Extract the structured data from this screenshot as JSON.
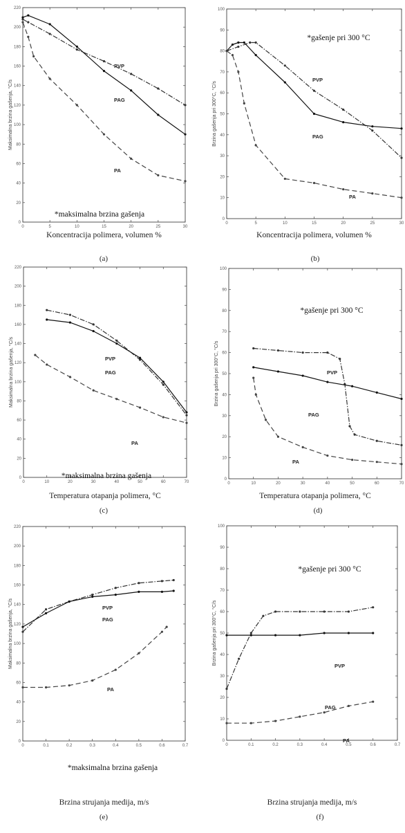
{
  "chart_data": [
    {
      "type": "line",
      "caption": "(a)",
      "xlabel": "Koncentracija polimera, volumen %",
      "ylabel": "Maksimalna brzina gašenja, °C/s",
      "annotation": "*maksimalna brzina gašenja",
      "xlim": [
        0,
        30
      ],
      "ylim": [
        0,
        220
      ],
      "xticks": [
        "0",
        "5",
        "10",
        "15",
        "20",
        "25",
        "30"
      ],
      "yticks": [
        "0",
        "20",
        "40",
        "60",
        "80",
        "100",
        "120",
        "140",
        "160",
        "180",
        "200",
        "220"
      ],
      "series": [
        {
          "name": "PVP",
          "x": [
            0,
            1,
            5,
            10,
            15,
            20,
            25,
            30
          ],
          "y": [
            208,
            205,
            193,
            177,
            165,
            152,
            137,
            120
          ]
        },
        {
          "name": "PAG",
          "x": [
            0,
            1,
            5,
            10,
            15,
            20,
            25,
            30
          ],
          "y": [
            210,
            212,
            203,
            180,
            155,
            135,
            110,
            90
          ]
        },
        {
          "name": "PA",
          "x": [
            0,
            1,
            2,
            5,
            10,
            15,
            20,
            25,
            30
          ],
          "y": [
            205,
            190,
            170,
            147,
            120,
            90,
            65,
            48,
            42
          ]
        }
      ]
    },
    {
      "type": "line",
      "caption": "(b)",
      "xlabel": "Koncentracija polimera, volumen %",
      "ylabel": "Brzina gašenja pri 300°C, °C/s",
      "annotation": "*gašenje pri 300 °C",
      "xlim": [
        0,
        30
      ],
      "ylim": [
        0,
        100
      ],
      "xticks": [
        "0",
        "5",
        "10",
        "15",
        "20",
        "25",
        "30"
      ],
      "yticks": [
        "0",
        "10",
        "20",
        "30",
        "40",
        "50",
        "60",
        "70",
        "80",
        "90",
        "100"
      ],
      "series": [
        {
          "name": "PVP",
          "x": [
            0,
            2,
            4,
            5,
            10,
            15,
            20,
            25,
            30
          ],
          "y": [
            80,
            82,
            84,
            84,
            73,
            61,
            52,
            42,
            29
          ]
        },
        {
          "name": "PAG",
          "x": [
            0,
            1,
            2,
            3,
            5,
            10,
            15,
            20,
            25,
            30
          ],
          "y": [
            80,
            83,
            84,
            84,
            78,
            65,
            50,
            46,
            44,
            43
          ]
        },
        {
          "name": "PA",
          "x": [
            0,
            1,
            2,
            3,
            5,
            10,
            15,
            20,
            25,
            30
          ],
          "y": [
            80,
            78,
            70,
            55,
            35,
            19,
            17,
            14,
            12,
            10
          ]
        }
      ]
    },
    {
      "type": "line",
      "caption": "(c)",
      "xlabel": "Temperatura otapanja polimera, °C",
      "ylabel": "Maksimalna brzina gašenja, °C/s",
      "annotation": "*maksimalna brzina gašenja",
      "xlim": [
        0,
        70
      ],
      "ylim": [
        0,
        220
      ],
      "xticks": [
        "0",
        "10",
        "20",
        "30",
        "40",
        "50",
        "60",
        "70"
      ],
      "yticks": [
        "0",
        "20",
        "40",
        "60",
        "80",
        "100",
        "120",
        "140",
        "160",
        "180",
        "200",
        "220"
      ],
      "series": [
        {
          "name": "PVP",
          "x": [
            10,
            20,
            30,
            40,
            50,
            60,
            70
          ],
          "y": [
            175,
            170,
            160,
            143,
            123,
            97,
            65
          ]
        },
        {
          "name": "PAG",
          "x": [
            10,
            20,
            30,
            40,
            50,
            60,
            70
          ],
          "y": [
            165,
            162,
            153,
            140,
            125,
            100,
            68
          ]
        },
        {
          "name": "PA",
          "x": [
            5,
            10,
            20,
            30,
            40,
            50,
            60,
            70
          ],
          "y": [
            128,
            118,
            105,
            91,
            82,
            73,
            63,
            57
          ]
        }
      ]
    },
    {
      "type": "line",
      "caption": "(d)",
      "xlabel": "Temperatura otapanja polimera, °C",
      "ylabel": "Brzina gašenja pri 300°C, °C/s",
      "annotation": "*gašenje pri 300 °C",
      "xlim": [
        0,
        70
      ],
      "ylim": [
        0,
        100
      ],
      "xticks": [
        "0",
        "10",
        "20",
        "30",
        "40",
        "50",
        "60",
        "70"
      ],
      "yticks": [
        "0",
        "10",
        "20",
        "30",
        "40",
        "50",
        "60",
        "70",
        "80",
        "90",
        "100"
      ],
      "series": [
        {
          "name": "PVP",
          "x": [
            10,
            20,
            30,
            40,
            45,
            47,
            49,
            51,
            60,
            70
          ],
          "y": [
            62,
            61,
            60,
            60,
            57,
            45,
            25,
            21,
            18,
            16
          ]
        },
        {
          "name": "PAG",
          "x": [
            10,
            20,
            30,
            40,
            50,
            60,
            70
          ],
          "y": [
            53,
            51,
            49,
            46,
            44,
            41,
            38
          ]
        },
        {
          "name": "PA",
          "x": [
            10,
            11,
            15,
            20,
            30,
            40,
            50,
            60,
            70
          ],
          "y": [
            48,
            40,
            28,
            20,
            15,
            11,
            9,
            8,
            7
          ]
        }
      ]
    },
    {
      "type": "line",
      "caption": "(e)",
      "xlabel": "Brzina strujanja medija, m/s",
      "ylabel": "Maksimalna brzina gašenja, °C/s",
      "annotation": "*maksimalna brzina gašenja",
      "xlim": [
        0,
        0.7
      ],
      "ylim": [
        0,
        220
      ],
      "xticks": [
        "0",
        "0.1",
        "0.2",
        "0.3",
        "0.4",
        "0.5",
        "0.6",
        "0.7"
      ],
      "yticks": [
        "0",
        "20",
        "40",
        "60",
        "80",
        "100",
        "120",
        "140",
        "160",
        "180",
        "200",
        "220"
      ],
      "series": [
        {
          "name": "PVP",
          "x": [
            0,
            0.1,
            0.2,
            0.3,
            0.4,
            0.5,
            0.6,
            0.65
          ],
          "y": [
            112,
            135,
            143,
            150,
            157,
            162,
            164,
            165
          ]
        },
        {
          "name": "PAG",
          "x": [
            0,
            0.1,
            0.2,
            0.3,
            0.4,
            0.5,
            0.6,
            0.65
          ],
          "y": [
            117,
            131,
            143,
            148,
            150,
            153,
            153,
            154
          ]
        },
        {
          "name": "PA",
          "x": [
            0,
            0.1,
            0.2,
            0.3,
            0.4,
            0.5,
            0.6,
            0.62
          ],
          "y": [
            55,
            55,
            57,
            62,
            73,
            90,
            112,
            117
          ]
        }
      ]
    },
    {
      "type": "line",
      "caption": "(f)",
      "xlabel": "Brzina strujanja medija, m/s",
      "ylabel": "Brzina gašenja pri 300°C, °C/s",
      "annotation": "*gašenje pri 300 °C",
      "xlim": [
        0,
        0.7
      ],
      "ylim": [
        0,
        100
      ],
      "xticks": [
        "0",
        "0.1",
        "0.2",
        "0.3",
        "0.4",
        "0.5",
        "0.6",
        "0.7"
      ],
      "yticks": [
        "0",
        "10",
        "20",
        "30",
        "40",
        "50",
        "60",
        "70",
        "80",
        "90",
        "100"
      ],
      "series": [
        {
          "name": "PVP",
          "x": [
            0,
            0.05,
            0.1,
            0.15,
            0.2,
            0.3,
            0.4,
            0.5,
            0.6
          ],
          "y": [
            24,
            38,
            50,
            58,
            60,
            60,
            60,
            60,
            62
          ]
        },
        {
          "name": "PAG",
          "x": [
            0,
            0.1,
            0.2,
            0.3,
            0.4,
            0.5,
            0.6
          ],
          "y": [
            49,
            49,
            49,
            49,
            50,
            50,
            50
          ]
        },
        {
          "name": "PA",
          "x": [
            0,
            0.1,
            0.2,
            0.3,
            0.4,
            0.5,
            0.6
          ],
          "y": [
            8,
            8,
            9,
            11,
            13,
            16,
            18
          ]
        }
      ]
    }
  ]
}
